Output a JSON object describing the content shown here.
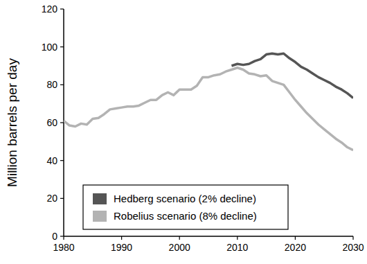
{
  "chart_data": {
    "type": "line",
    "y_label": "Million barrels per day",
    "x": [
      1980,
      1981,
      1982,
      1983,
      1984,
      1985,
      1986,
      1987,
      1988,
      1989,
      1990,
      1991,
      1992,
      1993,
      1994,
      1995,
      1996,
      1997,
      1998,
      1999,
      2000,
      2001,
      2002,
      2003,
      2004,
      2005,
      2006,
      2007,
      2008,
      2009,
      2010,
      2011,
      2012,
      2013,
      2014,
      2015,
      2016,
      2017,
      2018,
      2019,
      2020,
      2021,
      2022,
      2023,
      2024,
      2025,
      2026,
      2027,
      2028,
      2029,
      2030
    ],
    "series": [
      {
        "name": "Hedberg scenario (2% decline)",
        "color": "#555555",
        "values": [
          null,
          null,
          null,
          null,
          null,
          null,
          null,
          null,
          null,
          null,
          null,
          null,
          null,
          null,
          null,
          null,
          null,
          null,
          null,
          null,
          null,
          null,
          null,
          null,
          null,
          null,
          null,
          null,
          null,
          90,
          91,
          90.5,
          91,
          92.5,
          93.5,
          96,
          96.5,
          96,
          96.5,
          94,
          92,
          89.5,
          88,
          86,
          84,
          82.5,
          81,
          79,
          77.5,
          75.5,
          73
        ]
      },
      {
        "name": "Robelius scenario (8% decline)",
        "color": "#b3b3b3",
        "values": [
          61,
          58.5,
          58,
          59.5,
          59,
          62,
          62.5,
          64.5,
          67,
          67.5,
          68,
          68.5,
          68.5,
          69,
          70.5,
          72,
          72,
          74.5,
          76,
          74.5,
          77.5,
          77.5,
          77.5,
          79.5,
          84,
          84,
          85,
          85.5,
          87,
          88,
          89,
          88,
          86,
          85.5,
          84.5,
          85,
          82,
          81,
          80,
          76,
          72,
          68.5,
          65,
          62,
          59,
          56.5,
          54,
          51.5,
          49.5,
          47,
          45.5
        ]
      }
    ],
    "xlim": [
      1980,
      2030
    ],
    "ylim": [
      0,
      120
    ],
    "xticks": [
      1980,
      1990,
      2000,
      2010,
      2020,
      2030
    ],
    "yticks": [
      0,
      20,
      40,
      60,
      80,
      100,
      120
    ],
    "legend": "lower left",
    "grid": false
  }
}
